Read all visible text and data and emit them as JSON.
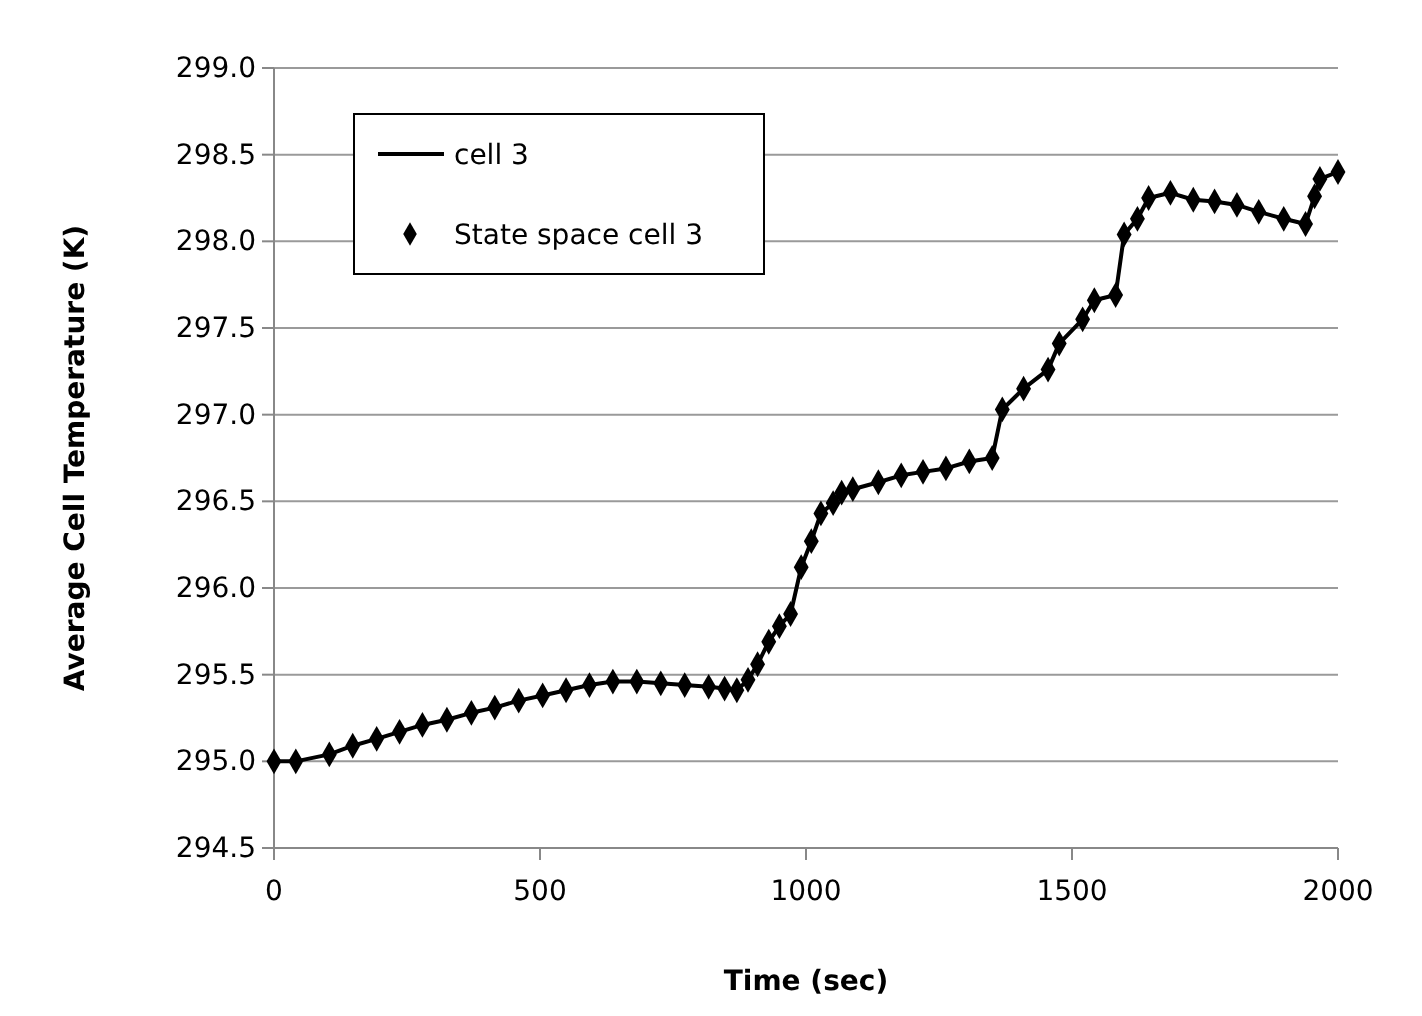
{
  "chart_data": {
    "type": "line",
    "xlabel": "Time (sec)",
    "ylabel": "Average Cell Temperature (K)",
    "x": [
      0,
      41,
      104,
      148,
      193,
      236,
      279,
      325,
      371,
      415,
      460,
      505,
      549,
      593,
      637,
      682,
      727,
      772,
      817,
      847,
      870,
      891,
      909,
      930,
      950,
      971,
      991,
      1010,
      1028,
      1051,
      1067,
      1088,
      1136,
      1179,
      1220,
      1263,
      1307,
      1350,
      1369,
      1409,
      1455,
      1476,
      1520,
      1542,
      1582,
      1598,
      1623,
      1644,
      1685,
      1728,
      1768,
      1810,
      1851,
      1898,
      1939,
      1956,
      1966,
      2000
    ],
    "series": [
      {
        "name": "cell 3",
        "color": "#000000",
        "marker": "none",
        "values": [
          295.0,
          295.0,
          295.04,
          295.09,
          295.13,
          295.17,
          295.21,
          295.24,
          295.28,
          295.31,
          295.35,
          295.38,
          295.41,
          295.44,
          295.46,
          295.46,
          295.45,
          295.44,
          295.43,
          295.42,
          295.41,
          295.47,
          295.56,
          295.69,
          295.78,
          295.85,
          296.12,
          296.27,
          296.43,
          296.49,
          296.55,
          296.57,
          296.61,
          296.65,
          296.67,
          296.69,
          296.73,
          296.75,
          297.03,
          297.15,
          297.26,
          297.41,
          297.55,
          297.66,
          297.69,
          298.04,
          298.13,
          298.25,
          298.28,
          298.24,
          298.23,
          298.21,
          298.17,
          298.13,
          298.1,
          298.26,
          298.36,
          298.4
        ]
      },
      {
        "name": "State space cell 3",
        "type": "scatter",
        "color": "#000000",
        "marker": "diamond",
        "values": [
          295.0,
          295.0,
          295.04,
          295.09,
          295.13,
          295.17,
          295.21,
          295.24,
          295.28,
          295.31,
          295.35,
          295.38,
          295.41,
          295.44,
          295.46,
          295.46,
          295.45,
          295.44,
          295.43,
          295.42,
          295.41,
          295.47,
          295.56,
          295.69,
          295.78,
          295.85,
          296.12,
          296.27,
          296.43,
          296.49,
          296.55,
          296.57,
          296.61,
          296.65,
          296.67,
          296.69,
          296.73,
          296.75,
          297.03,
          297.15,
          297.26,
          297.41,
          297.55,
          297.66,
          297.69,
          298.04,
          298.13,
          298.25,
          298.28,
          298.24,
          298.23,
          298.21,
          298.17,
          298.13,
          298.1,
          298.26,
          298.36,
          298.4
        ]
      }
    ],
    "xlim": [
      0,
      2000
    ],
    "xticks": [
      0,
      500,
      1000,
      1500,
      2000
    ],
    "ylim": [
      294.5,
      299.0
    ],
    "yticks": [
      {
        "value": 294.5,
        "label": "294.5"
      },
      {
        "value": 295.0,
        "label": "295.0"
      },
      {
        "value": 295.5,
        "label": "295.5"
      },
      {
        "value": 296.0,
        "label": "296.0"
      },
      {
        "value": 296.5,
        "label": "296.5"
      },
      {
        "value": 297.0,
        "label": "297.0"
      },
      {
        "value": 297.5,
        "label": "297.5"
      },
      {
        "value": 298.0,
        "label": "298.0"
      },
      {
        "value": 298.5,
        "label": "298.5"
      },
      {
        "value": 299.0,
        "label": "299.0"
      }
    ],
    "grid": "y",
    "legend": "top left"
  }
}
